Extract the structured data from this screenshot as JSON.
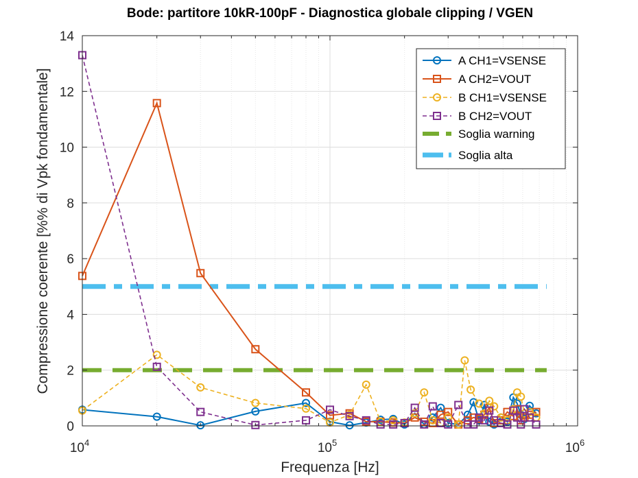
{
  "chart_data": {
    "type": "line",
    "title": "Bode: partitore 10kR-100pF - Diagnostica globale clipping / VGEN",
    "xlabel": "Frequenza [Hz]",
    "ylabel": "Compressione coerente [%% di Vpk fondamentale]",
    "xscale": "log",
    "xlim": [
      10000,
      1000000
    ],
    "ylim": [
      0,
      14
    ],
    "grid": true,
    "legend_position": "top-right",
    "x_ticks": [
      {
        "base": "10",
        "exp": "4",
        "value": 10000
      },
      {
        "base": "10",
        "exp": "5",
        "value": 100000
      },
      {
        "base": "10",
        "exp": "6",
        "value": 1000000
      }
    ],
    "y_ticks": [
      0,
      2,
      4,
      6,
      8,
      10,
      12,
      14
    ],
    "series": [
      {
        "name": "A CH1=VSENSE",
        "color": "#0072BD",
        "marker": "circle",
        "dash": "solid",
        "points": [
          [
            10000,
            0.58
          ],
          [
            20000,
            0.33
          ],
          [
            30000,
            0.02
          ],
          [
            50000,
            0.52
          ],
          [
            80000,
            0.82
          ],
          [
            100000,
            0.15
          ],
          [
            120000,
            0.02
          ],
          [
            140000,
            0.12
          ],
          [
            160000,
            0.22
          ],
          [
            180000,
            0.25
          ],
          [
            200000,
            0.05
          ],
          [
            220000,
            0.45
          ],
          [
            240000,
            0.05
          ],
          [
            260000,
            0.3
          ],
          [
            280000,
            0.65
          ],
          [
            300000,
            0.1
          ],
          [
            330000,
            0.05
          ],
          [
            360000,
            0.4
          ],
          [
            380000,
            0.85
          ],
          [
            400000,
            0.2
          ],
          [
            420000,
            0.75
          ],
          [
            440000,
            0.15
          ],
          [
            460000,
            0.05
          ],
          [
            490000,
            0.3
          ],
          [
            520000,
            0.15
          ],
          [
            550000,
            1.02
          ],
          [
            570000,
            0.8
          ],
          [
            590000,
            0.4
          ],
          [
            610000,
            0.25
          ],
          [
            640000,
            0.72
          ],
          [
            680000,
            0.45
          ]
        ]
      },
      {
        "name": "A CH2=VOUT",
        "color": "#D95319",
        "marker": "square",
        "dash": "solid",
        "points": [
          [
            10000,
            5.38
          ],
          [
            20000,
            11.58
          ],
          [
            30000,
            5.48
          ],
          [
            50000,
            2.75
          ],
          [
            80000,
            1.2
          ],
          [
            100000,
            0.38
          ],
          [
            120000,
            0.45
          ],
          [
            140000,
            0.15
          ],
          [
            160000,
            0.15
          ],
          [
            180000,
            0.12
          ],
          [
            200000,
            0.1
          ],
          [
            220000,
            0.3
          ],
          [
            240000,
            0.15
          ],
          [
            260000,
            0.1
          ],
          [
            280000,
            0.4
          ],
          [
            300000,
            0.5
          ],
          [
            330000,
            0.05
          ],
          [
            360000,
            0.2
          ],
          [
            380000,
            0.3
          ],
          [
            400000,
            0.25
          ],
          [
            420000,
            0.4
          ],
          [
            440000,
            0.65
          ],
          [
            460000,
            0.1
          ],
          [
            490000,
            0.2
          ],
          [
            520000,
            0.5
          ],
          [
            550000,
            0.35
          ],
          [
            570000,
            0.6
          ],
          [
            590000,
            0.2
          ],
          [
            610000,
            0.3
          ],
          [
            640000,
            0.4
          ],
          [
            680000,
            0.5
          ]
        ]
      },
      {
        "name": "B CH1=VSENSE",
        "color": "#EDB120",
        "marker": "circle",
        "dash": "dashed",
        "points": [
          [
            10000,
            0.55
          ],
          [
            20000,
            2.55
          ],
          [
            30000,
            1.38
          ],
          [
            50000,
            0.82
          ],
          [
            80000,
            0.62
          ],
          [
            100000,
            0.12
          ],
          [
            120000,
            0.4
          ],
          [
            140000,
            1.48
          ],
          [
            160000,
            0.15
          ],
          [
            180000,
            0.2
          ],
          [
            200000,
            0.12
          ],
          [
            220000,
            0.45
          ],
          [
            240000,
            1.2
          ],
          [
            260000,
            0.2
          ],
          [
            280000,
            0.1
          ],
          [
            300000,
            0.3
          ],
          [
            330000,
            0.05
          ],
          [
            350000,
            2.35
          ],
          [
            370000,
            1.3
          ],
          [
            400000,
            0.8
          ],
          [
            420000,
            0.45
          ],
          [
            440000,
            0.9
          ],
          [
            460000,
            0.7
          ],
          [
            490000,
            0.3
          ],
          [
            520000,
            0.2
          ],
          [
            550000,
            0.6
          ],
          [
            570000,
            1.2
          ],
          [
            590000,
            1.05
          ],
          [
            610000,
            0.45
          ],
          [
            640000,
            0.5
          ],
          [
            680000,
            0.3
          ]
        ]
      },
      {
        "name": "B CH2=VOUT",
        "color": "#7E2F8E",
        "marker": "square",
        "dash": "dashed",
        "points": [
          [
            10000,
            13.3
          ],
          [
            20000,
            2.12
          ],
          [
            30000,
            0.5
          ],
          [
            50000,
            0.03
          ],
          [
            80000,
            0.2
          ],
          [
            100000,
            0.58
          ],
          [
            120000,
            0.35
          ],
          [
            140000,
            0.2
          ],
          [
            160000,
            0.05
          ],
          [
            180000,
            0.05
          ],
          [
            200000,
            0.1
          ],
          [
            220000,
            0.65
          ],
          [
            240000,
            0.05
          ],
          [
            260000,
            0.7
          ],
          [
            280000,
            0.1
          ],
          [
            300000,
            0.05
          ],
          [
            330000,
            0.75
          ],
          [
            360000,
            0.05
          ],
          [
            380000,
            0.05
          ],
          [
            400000,
            0.3
          ],
          [
            420000,
            0.2
          ],
          [
            440000,
            0.55
          ],
          [
            460000,
            0.2
          ],
          [
            490000,
            0.1
          ],
          [
            520000,
            0.05
          ],
          [
            550000,
            0.55
          ],
          [
            570000,
            0.3
          ],
          [
            590000,
            0.05
          ],
          [
            610000,
            0.6
          ],
          [
            640000,
            0.3
          ],
          [
            680000,
            0.05
          ]
        ]
      }
    ],
    "thresholds": [
      {
        "name": "Soglia warning",
        "value": 2,
        "x_range": [
          10000,
          750000
        ],
        "color": "#77AC30"
      },
      {
        "name": "Soglia alta",
        "value": 5,
        "x_range": [
          10000,
          750000
        ],
        "color": "#4DBEEE"
      }
    ]
  }
}
